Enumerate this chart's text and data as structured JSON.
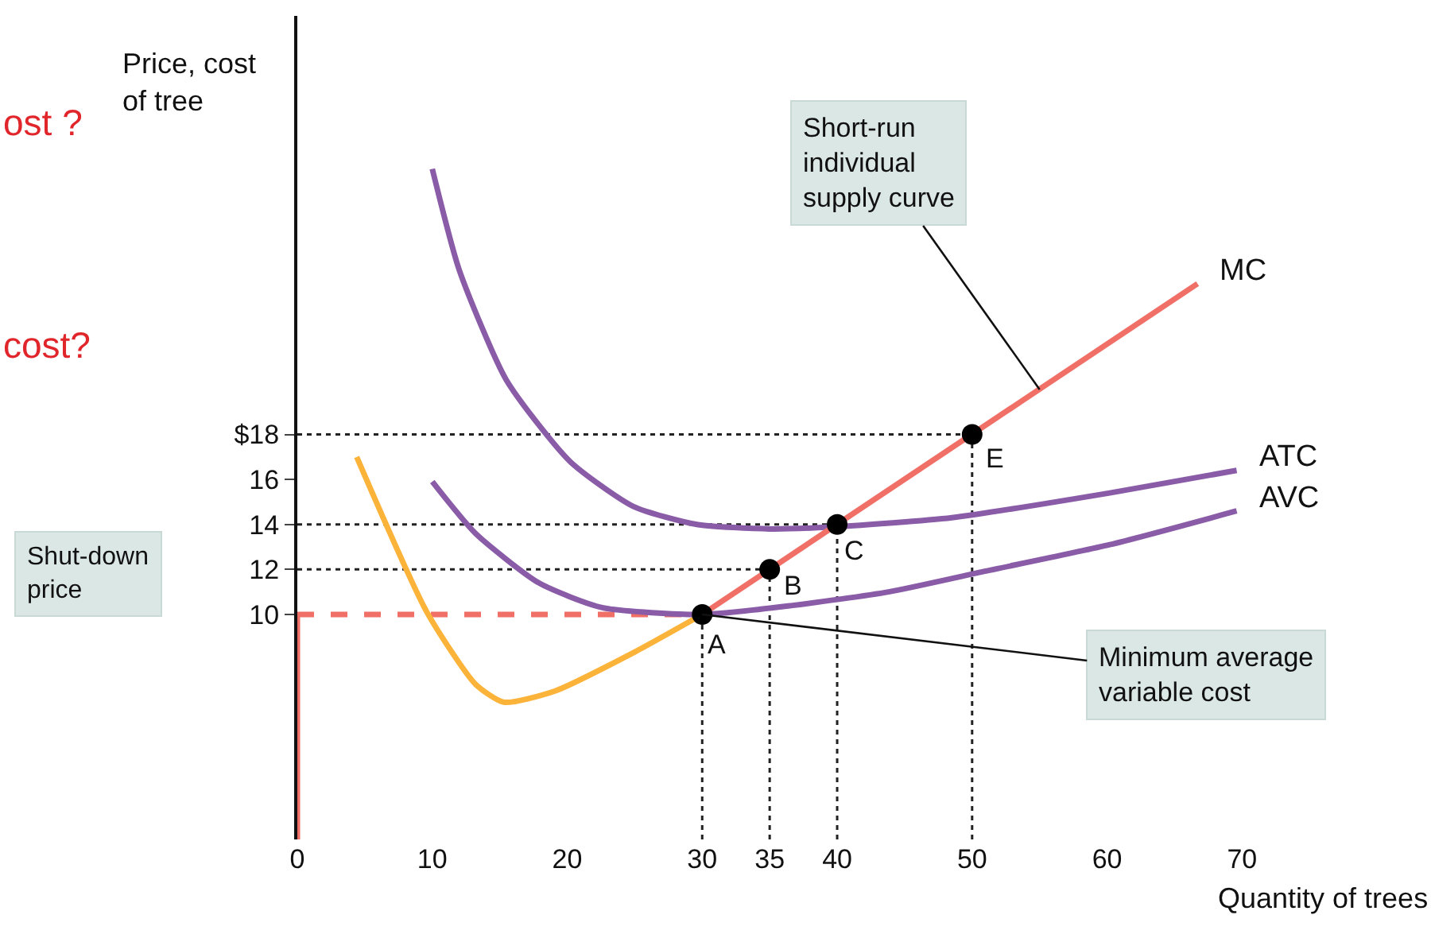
{
  "chart_data": {
    "type": "line",
    "xlabel": "Quantity of trees",
    "ylabel": "Price, cost\nof tree",
    "xlim": [
      0,
      84
    ],
    "ylim": [
      0,
      36.6
    ],
    "xticks": [
      0,
      10,
      20,
      30,
      35,
      40,
      50,
      60,
      70
    ],
    "yticks": [
      10,
      12,
      14,
      16,
      {
        "value": 18,
        "label": "$18"
      }
    ],
    "grid": false,
    "series": [
      {
        "line_style": "dotted",
        "color": "#222222",
        "x": [
          0,
          50
        ],
        "values": [
          18,
          18
        ]
      },
      {
        "line_style": "dotted",
        "color": "#222222",
        "x": [
          0,
          40
        ],
        "values": [
          14,
          14
        ]
      },
      {
        "line_style": "dotted",
        "color": "#222222",
        "x": [
          0,
          35
        ],
        "values": [
          12,
          12
        ]
      },
      {
        "line_style": "dotted",
        "color": "#222222",
        "x": [
          30,
          30
        ],
        "values": [
          0,
          10
        ]
      },
      {
        "line_style": "dotted",
        "color": "#222222",
        "x": [
          35,
          35
        ],
        "values": [
          0,
          12
        ]
      },
      {
        "line_style": "dotted",
        "color": "#222222",
        "x": [
          40,
          40
        ],
        "values": [
          0,
          14
        ]
      },
      {
        "line_style": "dotted",
        "color": "#222222",
        "x": [
          50,
          50
        ],
        "values": [
          0,
          18
        ]
      },
      {
        "line_style": "solid",
        "color": "#f07068",
        "x": [
          0,
          0
        ],
        "values": [
          0,
          10
        ]
      },
      {
        "line_style": "dashed",
        "color": "#f07068",
        "x": [
          0,
          30
        ],
        "values": [
          10,
          10
        ]
      },
      {
        "line_style": "solid",
        "color": "#fbb33a",
        "x": [
          4.4,
          9.6,
          13.2,
          15.3,
          19.1,
          24.9,
          30
        ],
        "values": [
          17,
          10.1,
          6.9,
          6.1,
          6.6,
          8.3,
          10
        ]
      },
      {
        "name": "ATC",
        "line_style": "solid",
        "color": "#8a5ca8",
        "x": [
          10,
          12,
          15.5,
          20.2,
          24.9,
          29.6,
          35,
          40,
          48.5,
          60.2,
          69.6
        ],
        "values": [
          29.8,
          25.3,
          20.4,
          16.8,
          14.8,
          14,
          13.8,
          13.9,
          14.3,
          15.4,
          16.4
        ]
      },
      {
        "name": "AVC",
        "line_style": "solid",
        "color": "#8a5ca8",
        "x": [
          10,
          13.2,
          17.9,
          22.6,
          30,
          36.7,
          43.8,
          50.8,
          60.2,
          69.6
        ],
        "values": [
          15.9,
          13.6,
          11.4,
          10.3,
          10,
          10.4,
          11,
          11.9,
          13.1,
          14.6
        ]
      },
      {
        "name": "MC",
        "line_style": "solid",
        "color": "#f07068",
        "x": [
          30,
          66.7
        ],
        "values": [
          10,
          24.7
        ]
      },
      {
        "type": "scatter",
        "marker": "circle",
        "color": "#000000",
        "x": [
          30,
          35,
          40,
          50
        ],
        "values": [
          10,
          12,
          14,
          18
        ]
      }
    ],
    "annotations": [
      "ost ?",
      "cost?",
      {
        "text": "Short-run\nindividual\nsupply curve",
        "x": 55,
        "y": 20
      },
      {
        "text": "Minimum average\nvariable cost",
        "x": 30,
        "y": 10
      },
      "Shut-down\nprice",
      {
        "text": "A",
        "x": 30,
        "y": 10
      },
      {
        "text": "B",
        "x": 35,
        "y": 12
      },
      {
        "text": "C",
        "x": 40,
        "y": 14
      },
      {
        "text": "E",
        "x": 50,
        "y": 18
      }
    ]
  }
}
